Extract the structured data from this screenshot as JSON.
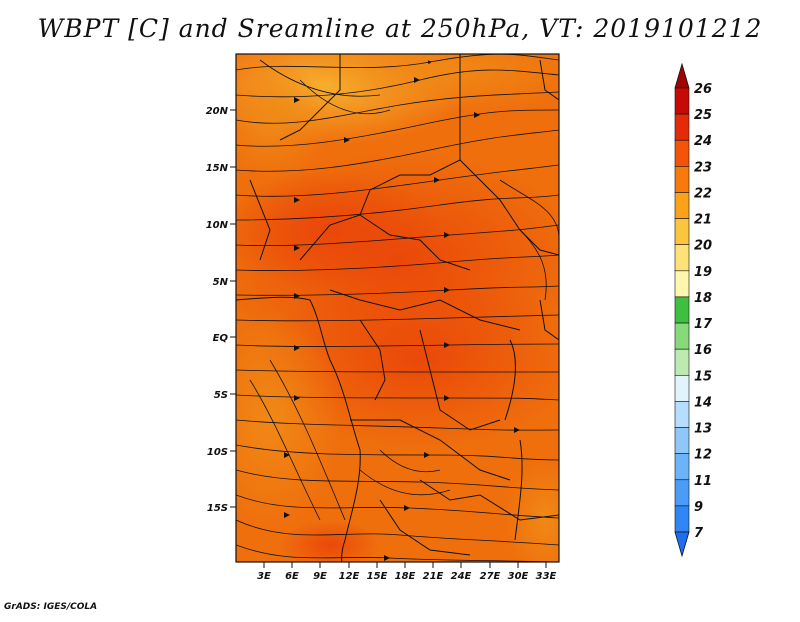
{
  "title": "WBPT [C] and Sreamline at 250hPa, VT: 2019101212",
  "credit": "GrADS: IGES/COLA",
  "map": {
    "lon_ticks": [
      "3E",
      "6E",
      "9E",
      "12E",
      "15E",
      "18E",
      "21E",
      "24E",
      "27E",
      "30E",
      "33E"
    ],
    "lat_ticks": [
      "20N",
      "15N",
      "10N",
      "5N",
      "EQ",
      "5S",
      "10S",
      "15S"
    ]
  },
  "colorbar": {
    "levels": [
      "7",
      "9",
      "11",
      "12",
      "13",
      "14",
      "15",
      "16",
      "17",
      "18",
      "19",
      "20",
      "21",
      "22",
      "23",
      "24",
      "25",
      "26"
    ],
    "colors": [
      "#1e6ff0",
      "#2f86f5",
      "#4a9cf7",
      "#6cb3f9",
      "#8ec8fb",
      "#b6ddfd",
      "#e2f4fb",
      "#bdeab1",
      "#88d97a",
      "#3fbf3f",
      "#fff6b0",
      "#fde27a",
      "#fdc43d",
      "#fba11a",
      "#f97a0c",
      "#f4530a",
      "#e42b08",
      "#c80a06",
      "#9e0404"
    ]
  },
  "icons": {
    "map_panel": "streamline-map",
    "colorbar": "color-scale"
  }
}
